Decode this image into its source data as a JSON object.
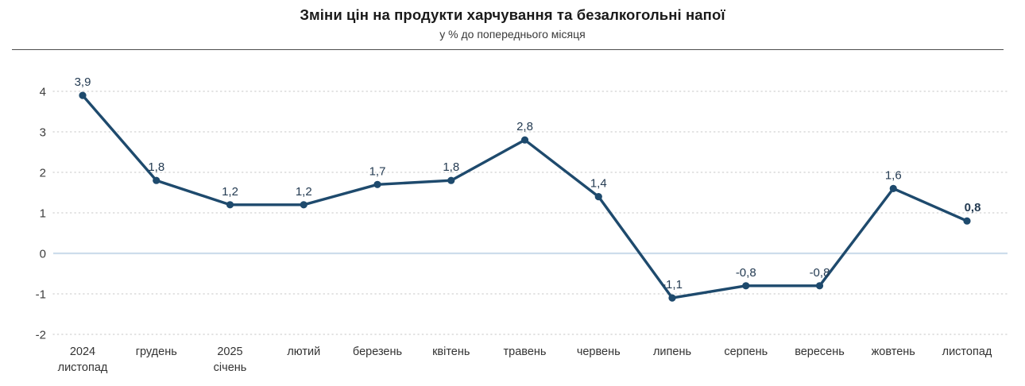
{
  "header": {
    "title": "Зміни цін на продукти харчування та безалкогольні напої",
    "subtitle": "у % до попереднього місяця"
  },
  "chart_data": {
    "type": "line",
    "title": "Зміни цін на продукти харчування та безалкогольні напої",
    "subtitle": "у % до попереднього місяця",
    "categories": [
      [
        "2024",
        "листопад"
      ],
      [
        "грудень"
      ],
      [
        "2025",
        "січень"
      ],
      [
        "лютий"
      ],
      [
        "березень"
      ],
      [
        "квітень"
      ],
      [
        "травень"
      ],
      [
        "червень"
      ],
      [
        "липень"
      ],
      [
        "серпень"
      ],
      [
        "вересень"
      ],
      [
        "жовтень"
      ],
      [
        "листопад"
      ]
    ],
    "values": [
      3.9,
      1.8,
      1.2,
      1.2,
      1.7,
      1.8,
      2.8,
      1.4,
      -1.1,
      -0.8,
      -0.8,
      1.6,
      0.8
    ],
    "labels": [
      "3,9",
      "1,8",
      "1,2",
      "1,2",
      "1,7",
      "1,8",
      "2,8",
      "1,4",
      "-1,1",
      "-0,8",
      "-0,8",
      "1,6",
      "0,8"
    ],
    "bold_label_index": 12,
    "xlabel": "",
    "ylabel": "",
    "ylim": [
      -2,
      4
    ],
    "yticks": [
      4,
      3,
      2,
      1,
      0,
      -1,
      -2
    ],
    "grid": "horizontal-dotted",
    "zero_line": "solid-light-blue",
    "legend": "none",
    "colors": {
      "line": "#1E4A6D",
      "marker": "#1E4A6D",
      "point_label": "#243B52",
      "zero_line": "#CDDDEB",
      "grid": "#D9D9D9",
      "axis_text": "#3D3D3D"
    }
  }
}
